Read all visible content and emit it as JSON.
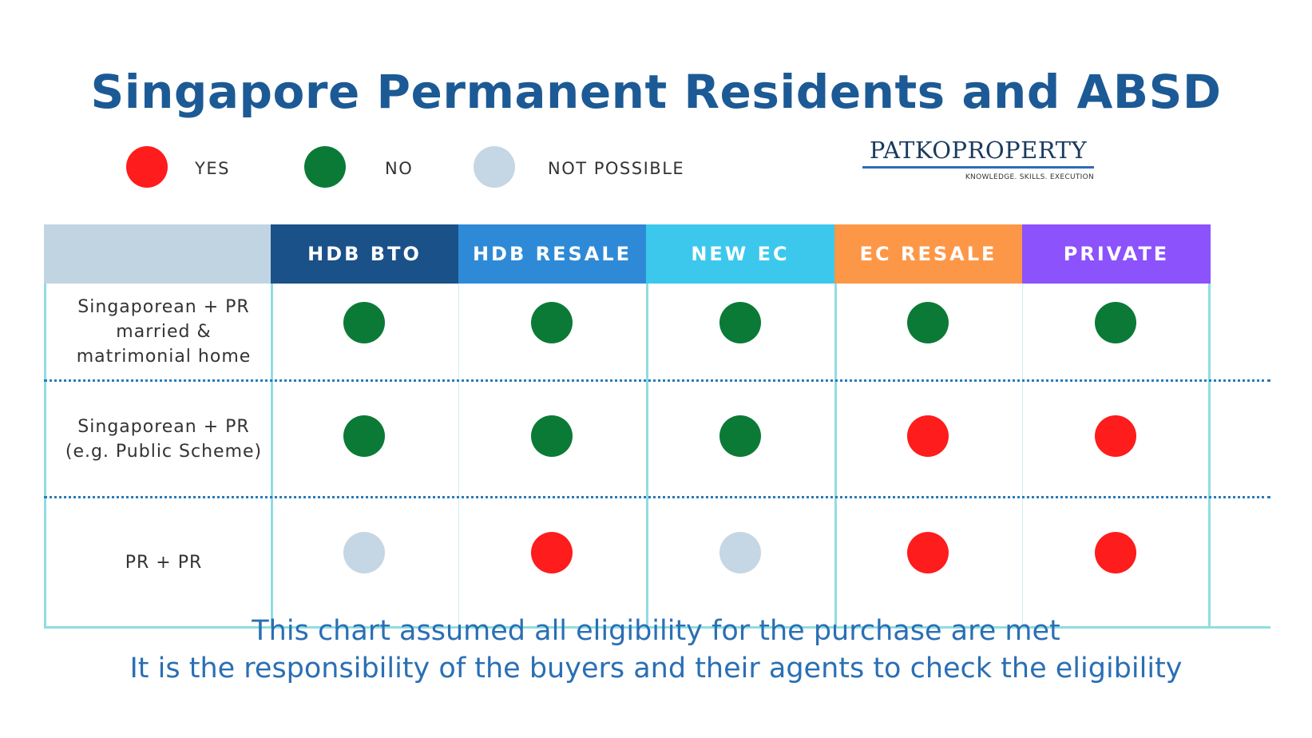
{
  "title": "Singapore Permanent Residents and ABSD",
  "legend": [
    {
      "key": "yes",
      "label": "YES",
      "color": "#fe1c1c"
    },
    {
      "key": "no",
      "label": "NO",
      "color": "#0b7a36"
    },
    {
      "key": "not_possible",
      "label": "NOT POSSIBLE",
      "color": "#c5d6e4"
    }
  ],
  "brand": {
    "name": "PATKOPROPERTY",
    "tagline": "KNOWLEDGE. SKILLS. EXECUTION"
  },
  "table": {
    "columns": [
      {
        "label": "HDB BTO",
        "color": "#1a5189"
      },
      {
        "label": "HDB RESALE",
        "color": "#2e8ad6"
      },
      {
        "label": "NEW EC",
        "color": "#3cc8ec"
      },
      {
        "label": "EC RESALE",
        "color": "#fd9748"
      },
      {
        "label": "PRIVATE",
        "color": "#8c52fc"
      }
    ],
    "header_blank_color": "#c0d4e2",
    "rows": [
      {
        "label_lines": [
          "Singaporean + PR",
          "married &",
          "matrimonial home"
        ],
        "values": [
          "no",
          "no",
          "no",
          "no",
          "no"
        ]
      },
      {
        "label_lines": [
          "Singaporean + PR",
          "(e.g. Public Scheme)"
        ],
        "values": [
          "no",
          "no",
          "no",
          "yes",
          "yes"
        ]
      },
      {
        "label_lines": [
          "PR + PR"
        ],
        "values": [
          "not_possible",
          "yes",
          "not_possible",
          "yes",
          "yes"
        ]
      }
    ]
  },
  "footer": {
    "line1": "This chart assumed all eligibility for the purchase are met",
    "line2": "It is the responsibility of the buyers and their agents to check the eligibility"
  }
}
